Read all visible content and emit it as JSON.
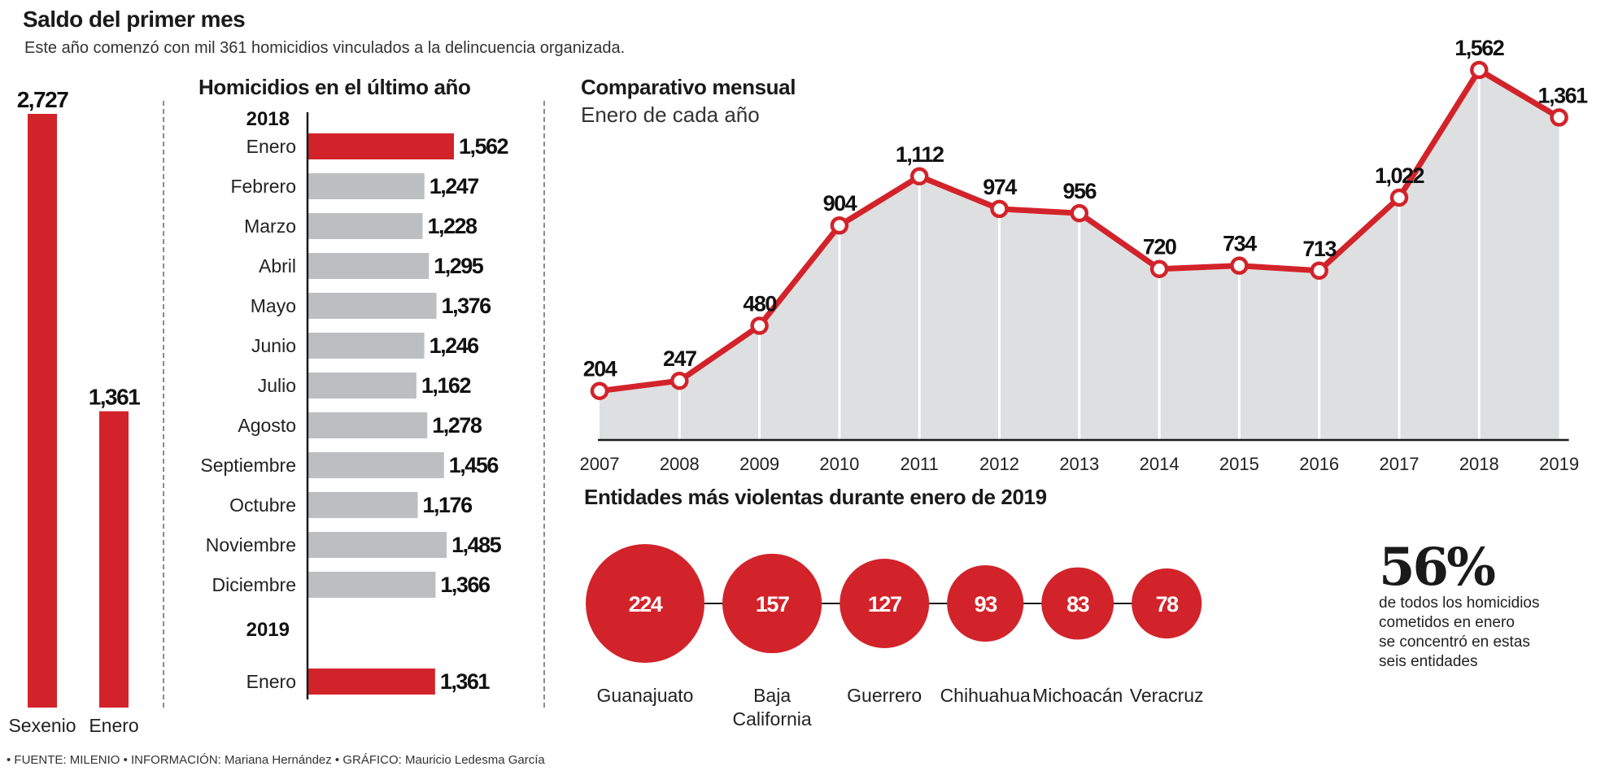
{
  "header": {
    "title": "Saldo del primer mes",
    "subtitle": "Este año comenzó con mil 361 homicidios vinculados a la delincuencia organizada."
  },
  "footer": {
    "credits": "• FUENTE: MILENIO • INFORMACIÓN: Mariana Hernández • GRÁFICO: Mauricio Ledesma García"
  },
  "colors": {
    "red": "#d2232a",
    "gray_bar": "#bdbec0",
    "area": "#dedfe0",
    "axis": "#1a1a1a"
  },
  "chart_data": [
    {
      "type": "bar",
      "title": "",
      "categories": [
        "Sexenio",
        "Enero"
      ],
      "values": [
        2727,
        1361
      ],
      "value_labels": [
        "2,727",
        "1,361"
      ],
      "ylim": [
        0,
        2727
      ]
    },
    {
      "type": "bar",
      "orientation": "horizontal",
      "title": "Homicidios en el último año",
      "groups": [
        {
          "year": "2018",
          "categories": [
            "Enero",
            "Febrero",
            "Marzo",
            "Abril",
            "Mayo",
            "Junio",
            "Julio",
            "Agosto",
            "Septiembre",
            "Octubre",
            "Noviembre",
            "Diciembre"
          ],
          "values": [
            1562,
            1247,
            1228,
            1295,
            1376,
            1246,
            1162,
            1278,
            1456,
            1176,
            1485,
            1366
          ],
          "value_labels": [
            "1,562",
            "1,247",
            "1,228",
            "1,295",
            "1,376",
            "1,246",
            "1,162",
            "1,278",
            "1,456",
            "1,176",
            "1,485",
            "1,366"
          ],
          "highlight": [
            true,
            false,
            false,
            false,
            false,
            false,
            false,
            false,
            false,
            false,
            false,
            false
          ]
        },
        {
          "year": "2019",
          "categories": [
            "Enero"
          ],
          "values": [
            1361
          ],
          "value_labels": [
            "1,361"
          ],
          "highlight": [
            true
          ]
        }
      ]
    },
    {
      "type": "line",
      "title": "Comparativo mensual",
      "subtitle": "Enero de cada año",
      "x": [
        "2007",
        "2008",
        "2009",
        "2010",
        "2011",
        "2012",
        "2013",
        "2014",
        "2015",
        "2016",
        "2017",
        "2018",
        "2019"
      ],
      "values": [
        204,
        247,
        480,
        904,
        1112,
        974,
        956,
        720,
        734,
        713,
        1022,
        1562,
        1361
      ],
      "value_labels": [
        "204",
        "247",
        "480",
        "904",
        "1,112",
        "974",
        "956",
        "720",
        "734",
        "713",
        "1,022",
        "1,562",
        "1,361"
      ],
      "ylim": [
        0,
        1562
      ],
      "filled_area": true
    },
    {
      "type": "bubble",
      "title": "Entidades más violentas durante enero de 2019",
      "categories": [
        "Guanajuato",
        "Baja California",
        "Guerrero",
        "Chihuahua",
        "Michoacán",
        "Veracruz"
      ],
      "label_lines": [
        [
          "Guanajuato"
        ],
        [
          "Baja",
          "California"
        ],
        [
          "Guerrero"
        ],
        [
          "Chihuahua"
        ],
        [
          "Michoacán"
        ],
        [
          "Veracruz"
        ]
      ],
      "values": [
        224,
        157,
        127,
        93,
        83,
        78
      ],
      "value_labels": [
        "224",
        "157",
        "127",
        "93",
        "83",
        "78"
      ]
    }
  ],
  "stat": {
    "percent": "56%",
    "lines": [
      "de todos los homicidios",
      "cometidos en enero",
      "se concentró en estas",
      "seis entidades"
    ]
  }
}
